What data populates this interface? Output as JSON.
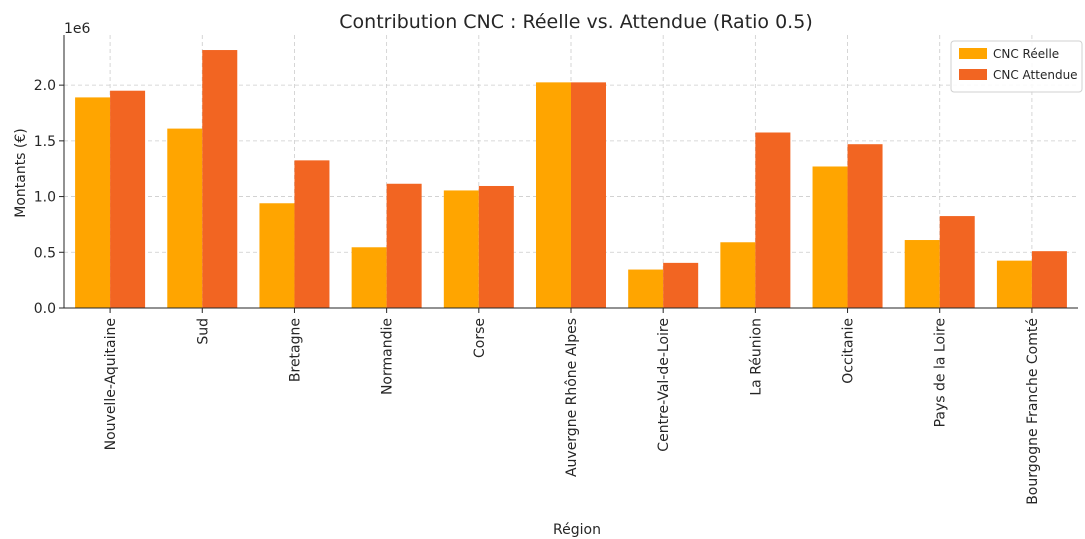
{
  "chart_data": {
    "type": "bar",
    "title": "Contribution CNC : Réelle vs. Attendue (Ratio 0.5)",
    "xlabel": "Région",
    "ylabel": "Montants (€)",
    "y_offset_label": "1e6",
    "ylim": [
      0,
      2450000
    ],
    "yticks": [
      0,
      500000,
      1000000,
      1500000,
      2000000
    ],
    "ytick_labels": [
      "0.0",
      "0.5",
      "1.0",
      "1.5",
      "2.0"
    ],
    "grid": true,
    "legend_position": "top-right",
    "categories": [
      "Nouvelle-Aquitaine",
      "Sud",
      "Bretagne",
      "Normandie",
      "Corse",
      "Auvergne Rhône Alpes",
      "Centre-Val-de-Loire",
      "La Réunion",
      "Occitanie",
      "Pays de la Loire",
      "Bourgogne Franche Comté"
    ],
    "series": [
      {
        "name": "CNC Réelle",
        "color": "#ffa500",
        "values": [
          1890000,
          1610000,
          940000,
          545000,
          1055000,
          2025000,
          345000,
          590000,
          1270000,
          610000,
          425000
        ]
      },
      {
        "name": "CNC Attendue",
        "color": "#f26522",
        "values": [
          1950000,
          2315000,
          1325000,
          1115000,
          1095000,
          2025000,
          405000,
          1575000,
          1470000,
          825000,
          510000
        ]
      }
    ]
  }
}
